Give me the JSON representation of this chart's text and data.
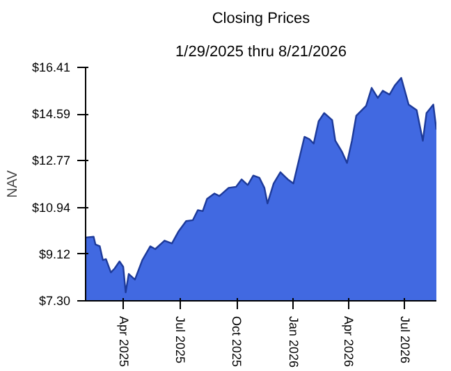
{
  "chart_data": {
    "type": "area",
    "title": "Closing Prices",
    "subtitle": "1/29/2025 thru 8/21/2026",
    "ylabel": "NAV",
    "x": [
      "2025-01-29",
      "2025-02-11",
      "2025-02-14",
      "2025-02-21",
      "2025-02-26",
      "2025-03-03",
      "2025-03-11",
      "2025-03-17",
      "2025-03-25",
      "2025-03-31",
      "2025-04-04",
      "2025-04-09",
      "2025-04-19",
      "2025-05-01",
      "2025-05-14",
      "2025-05-22",
      "2025-06-06",
      "2025-06-18",
      "2025-06-29",
      "2025-07-11",
      "2025-07-22",
      "2025-07-30",
      "2025-08-07",
      "2025-08-14",
      "2025-08-26",
      "2025-09-03",
      "2025-09-18",
      "2025-09-30",
      "2025-10-09",
      "2025-10-19",
      "2025-10-28",
      "2025-11-07",
      "2025-11-15",
      "2025-11-20",
      "2025-11-30",
      "2025-12-11",
      "2025-12-23",
      "2026-01-01",
      "2026-01-10",
      "2026-01-19",
      "2026-01-27",
      "2026-02-03",
      "2026-02-11",
      "2026-02-20",
      "2026-03-05",
      "2026-03-10",
      "2026-03-21",
      "2026-03-29",
      "2026-04-06",
      "2026-04-13",
      "2026-04-29",
      "2026-05-08",
      "2026-05-18",
      "2026-05-26",
      "2026-06-06",
      "2026-06-15",
      "2026-06-25",
      "2026-07-07",
      "2026-07-20",
      "2026-07-30",
      "2026-08-05",
      "2026-08-16",
      "2026-08-21"
    ],
    "series": [
      {
        "color": "#4169e1",
        "values": [
          9.77,
          9.8,
          9.5,
          9.43,
          8.89,
          8.93,
          8.41,
          8.56,
          8.84,
          8.63,
          7.63,
          8.35,
          8.13,
          8.89,
          9.43,
          9.32,
          9.65,
          9.54,
          10.02,
          10.41,
          10.45,
          10.84,
          10.8,
          11.28,
          11.49,
          11.39,
          11.71,
          11.75,
          12.04,
          11.82,
          12.19,
          12.1,
          11.71,
          11.1,
          11.88,
          12.32,
          12.04,
          11.88,
          12.79,
          13.7,
          13.61,
          13.44,
          14.31,
          14.63,
          14.35,
          13.55,
          13.11,
          12.68,
          13.55,
          14.52,
          14.91,
          15.61,
          15.22,
          15.5,
          15.35,
          15.72,
          16.0,
          14.96,
          14.74,
          13.55,
          14.63,
          14.96,
          13.98
        ]
      }
    ],
    "xlim": [
      "2025-01-29",
      "2026-08-21"
    ],
    "xticks": [
      {
        "value": "2025-04-01",
        "label": "Apr 2025"
      },
      {
        "value": "2025-07-01",
        "label": "Jul 2025"
      },
      {
        "value": "2025-10-01",
        "label": "Oct 2025"
      },
      {
        "value": "2026-01-01",
        "label": "Jan 2026"
      },
      {
        "value": "2026-04-01",
        "label": "Apr 2026"
      },
      {
        "value": "2026-07-01",
        "label": "Jul 2026"
      }
    ],
    "ylim": [
      7.3,
      16.41
    ],
    "yticks": [
      {
        "value": 7.3,
        "label": "$7.30"
      },
      {
        "value": 9.12,
        "label": "$9.12"
      },
      {
        "value": 10.94,
        "label": "$10.94"
      },
      {
        "value": 12.77,
        "label": "$12.77"
      },
      {
        "value": 14.59,
        "label": "$14.59"
      },
      {
        "value": 16.41,
        "label": "$16.41"
      }
    ],
    "grid": false
  }
}
